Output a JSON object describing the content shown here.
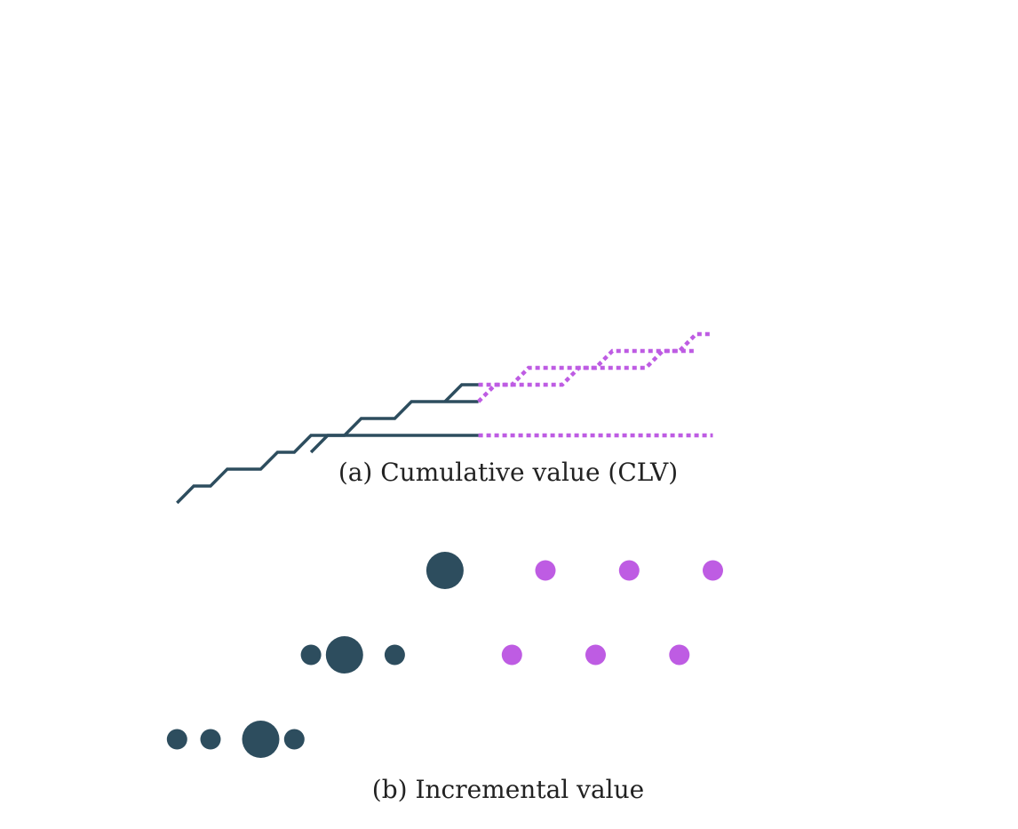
{
  "colors": {
    "observed": "#2d4d5e",
    "forecast": "#be5ce3",
    "background": "#ffffff"
  },
  "panel_a": {
    "caption": "(a) Cumulative value (CLV)",
    "customers": [
      {
        "observed": [
          [
            -3,
            8
          ],
          [
            -2.5,
            9
          ],
          [
            -2,
            9
          ]
        ],
        "forecast": [
          [
            -2,
            9
          ],
          [
            -1,
            9
          ],
          [
            -0.5,
            10
          ],
          [
            1.5,
            10
          ],
          [
            2,
            11
          ],
          [
            4,
            11
          ],
          [
            4.5,
            12
          ],
          [
            5,
            12
          ]
        ]
      },
      {
        "observed": [
          [
            -7,
            5
          ],
          [
            -6.5,
            6
          ],
          [
            -6,
            6
          ],
          [
            -5.5,
            7
          ],
          [
            -4.5,
            7
          ],
          [
            -4,
            8
          ],
          [
            -2,
            8
          ]
        ],
        "forecast": [
          [
            -2,
            8
          ],
          [
            -1.5,
            9
          ],
          [
            0.5,
            9
          ],
          [
            1,
            10
          ],
          [
            3,
            10
          ],
          [
            3.5,
            11
          ],
          [
            4.5,
            11
          ]
        ]
      },
      {
        "observed": [
          [
            -11,
            2
          ],
          [
            -10.5,
            3
          ],
          [
            -10,
            3
          ],
          [
            -9.5,
            4
          ],
          [
            -8.5,
            4
          ],
          [
            -8,
            5
          ],
          [
            -7.5,
            5
          ],
          [
            -7,
            6
          ],
          [
            -2,
            6
          ]
        ],
        "forecast": [
          [
            -2,
            6
          ],
          [
            5,
            6
          ]
        ]
      }
    ]
  },
  "panel_b": {
    "caption": "(b) Incremental value",
    "customers": [
      {
        "observed": [
          {
            "t": -3,
            "size": "large"
          }
        ],
        "forecast": [
          {
            "t": 0,
            "size": "small"
          },
          {
            "t": 2.5,
            "size": "small"
          },
          {
            "t": 5,
            "size": "small"
          }
        ]
      },
      {
        "observed": [
          {
            "t": -7,
            "size": "small"
          },
          {
            "t": -6,
            "size": "large"
          },
          {
            "t": -4.5,
            "size": "small"
          }
        ],
        "forecast": [
          {
            "t": -1,
            "size": "small"
          },
          {
            "t": 1.5,
            "size": "small"
          },
          {
            "t": 4,
            "size": "small"
          }
        ]
      },
      {
        "observed": [
          {
            "t": -11,
            "size": "small"
          },
          {
            "t": -10,
            "size": "small"
          },
          {
            "t": -8.5,
            "size": "large"
          },
          {
            "t": -7.5,
            "size": "small"
          }
        ],
        "forecast": []
      }
    ]
  }
}
